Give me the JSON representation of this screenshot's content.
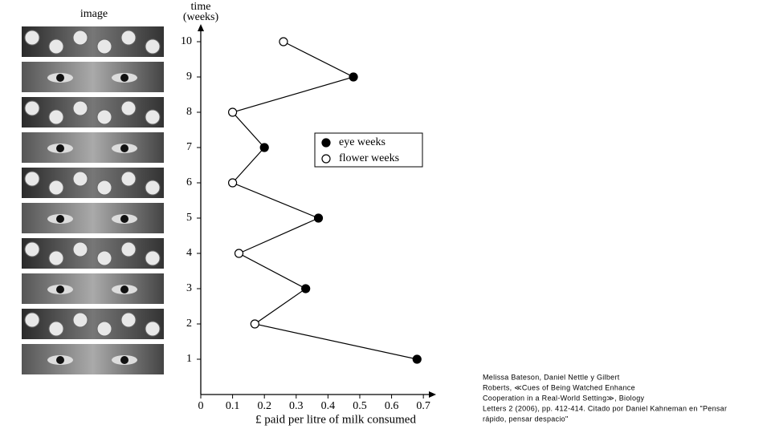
{
  "header": "image",
  "chart_data": {
    "type": "line",
    "orientation": "horizontal",
    "ylabel_lines": [
      "time",
      "(weeks)"
    ],
    "xlabel": "£ paid per litre of milk consumed",
    "y": [
      1,
      2,
      3,
      4,
      5,
      6,
      7,
      8,
      9,
      10
    ],
    "values": [
      0.68,
      0.17,
      0.33,
      0.12,
      0.37,
      0.1,
      0.2,
      0.1,
      0.48,
      0.26
    ],
    "groups": [
      0,
      1,
      0,
      1,
      0,
      1,
      0,
      1,
      0,
      1
    ],
    "legend": [
      {
        "name": "eye weeks",
        "fill": "#000000"
      },
      {
        "name": "flower weeks",
        "fill": "#ffffff"
      }
    ],
    "color": "#000000",
    "xlim": [
      0,
      0.74
    ],
    "xticks": [
      0,
      0.1,
      0.2,
      0.3,
      0.4,
      0.5,
      0.6,
      0.7
    ],
    "ylim": [
      0,
      10.5
    ],
    "yticks": [
      1,
      2,
      3,
      4,
      5,
      6,
      7,
      8,
      9,
      10
    ]
  },
  "note_lines": [
    "Melissa Bateson, Daniel Nettle y Gilbert",
    "Roberts, ≪Cues of Being Watched Enhance",
    "Cooperation in a Real-World Setting≫, Biology",
    "Letters 2 (2006), pp. 412-414. Citado por Daniel Kahneman en \"Pensar",
    "rápido, pensar despacio\""
  ]
}
